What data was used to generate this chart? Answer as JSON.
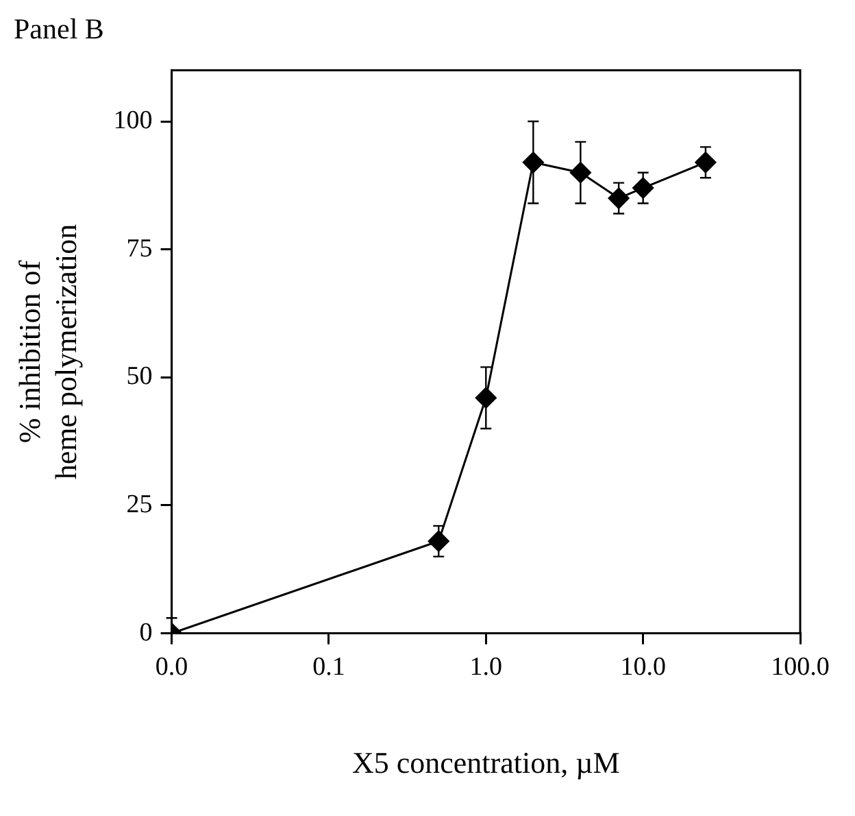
{
  "chart_data": {
    "type": "line",
    "title": "Panel B",
    "xlabel": "X5 concentration, µM",
    "ylabel": "% inhibition of\nheme polymerization",
    "log": "x",
    "xlim": [
      0.01,
      100
    ],
    "xticks": [
      {
        "value": 0.01,
        "label": "0.0"
      },
      {
        "value": 0.1,
        "label": "0.1"
      },
      {
        "value": 1,
        "label": "1.0"
      },
      {
        "value": 10,
        "label": "10.0"
      },
      {
        "value": 100,
        "label": "100.0"
      }
    ],
    "ylim": [
      0,
      110
    ],
    "yticks": [
      0,
      25,
      50,
      75,
      100
    ],
    "grid": false,
    "legend": false,
    "marker": "diamond",
    "line_style": "solid",
    "x": [
      0.01,
      0.5,
      1,
      2,
      4,
      7,
      10,
      25
    ],
    "series": [
      {
        "color": "#000000",
        "values": [
          0,
          18,
          46,
          92,
          90,
          85,
          87,
          92
        ],
        "errors": [
          [
            0,
            3
          ],
          [
            15,
            21
          ],
          [
            40,
            52
          ],
          [
            84,
            100
          ],
          [
            84,
            96
          ],
          [
            82,
            88
          ],
          [
            84,
            90
          ],
          [
            89,
            95
          ]
        ]
      }
    ]
  }
}
